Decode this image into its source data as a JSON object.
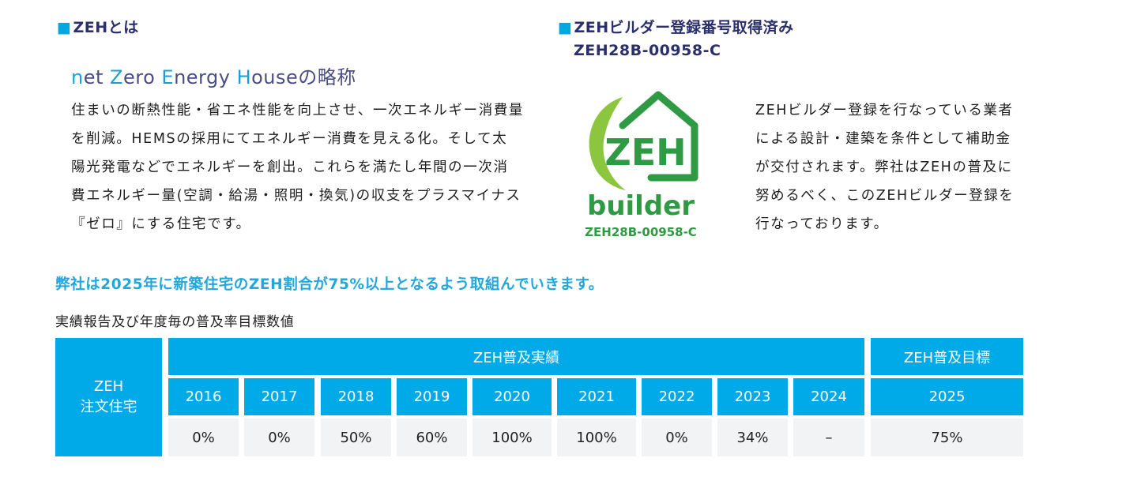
{
  "left_section": {
    "square": "■",
    "title": "ZEHとは",
    "heading": {
      "n": "n",
      "et": "et ",
      "z": "Z",
      "ero": "ero ",
      "e": "E",
      "nergy": "nergy ",
      "h": "H",
      "ouse": "ouseの略称"
    },
    "description_lines": [
      "住まいの断熱性能・省エネ性能を向上させ、一次エネルギー消費量",
      "を削減。HEMSの採用にてエネルギー消費を見える化。そして太",
      "陽光発電などでエネルギーを創出。これらを満たし年間の一次消",
      "費エネルギー量(空調・給湯・照明・換気)の収支をプラスマイナス",
      "『ゼロ』にする住宅です。"
    ]
  },
  "right_section": {
    "square": "■",
    "title": "ZEHビルダー登録番号取得済み",
    "number": "ZEH28B-00958-C",
    "logo": {
      "big_text": "ZEH",
      "word": "builder",
      "code": "ZEH28B-00958-C",
      "colors": {
        "green": "#2f9a44",
        "light_green": "#8cc63f"
      }
    },
    "description_lines": [
      "ZEHビルダー登録を行なっている業者",
      "による設計・建築を条件として補助金",
      "が交付されます。弊社はZEHの普及に",
      "努めるべく、このZEHビルダー登録を",
      "行なっております。"
    ]
  },
  "target_statement": "弊社は2025年に新築住宅のZEH割合が75%以上となるよう取組んでいきます。",
  "table": {
    "caption": "実績報告及び年度毎の普及率目標数値",
    "row_label_line1": "ZEH",
    "row_label_line2": "注文住宅",
    "results_header": "ZEH普及実績",
    "target_header": "ZEH普及目標",
    "years": [
      "2016",
      "2017",
      "2018",
      "2019",
      "2020",
      "2021",
      "2022",
      "2023",
      "2024"
    ],
    "values": [
      "0%",
      "0%",
      "50%",
      "60%",
      "100%",
      "100%",
      "0%",
      "34%",
      "–"
    ],
    "target_year": "2025",
    "target_value": "75%"
  },
  "colors": {
    "header_blue": "#00aae8",
    "title_navy": "#2b2f6b",
    "accent_blue": "#21a7de",
    "cell_gray": "#f1f3f5"
  }
}
